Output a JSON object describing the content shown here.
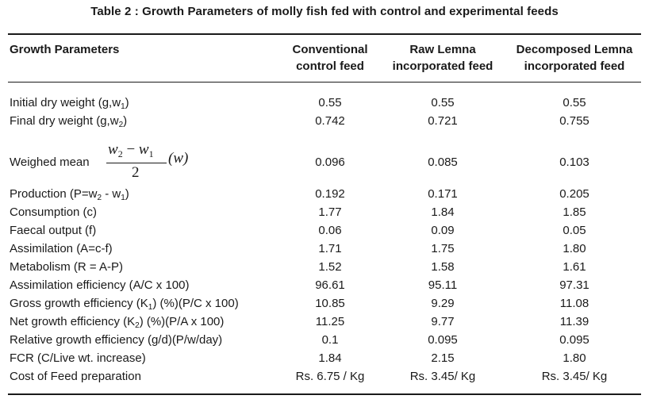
{
  "caption": "Table 2 : Growth Parameters of molly fish fed with control and experimental feeds",
  "headers": {
    "col0": "Growth Parameters",
    "col1": [
      "Conventional",
      "control feed"
    ],
    "col2": [
      "Raw Lemna",
      "incorporated feed"
    ],
    "col3": [
      "Decomposed Lemna",
      "incorporated feed"
    ]
  },
  "formula": {
    "num_a": "w",
    "num_a_sub": "2",
    "minus": " − ",
    "num_b": "w",
    "num_b_sub": "1",
    "den": "2",
    "factor": "(w)"
  },
  "rows": [
    {
      "label": "Initial dry weight (g,w",
      "label_sub": "1",
      "label_end": ")",
      "values": [
        "0.55",
        "0.55",
        "0.55"
      ]
    },
    {
      "label": "Final dry weight (g,w",
      "label_sub": "2",
      "label_end": ")",
      "values": [
        "0.742",
        "0.721",
        "0.755"
      ]
    },
    {
      "label": "Weighed mean",
      "values": [
        "0.096",
        "0.085",
        "0.103"
      ]
    },
    {
      "label": "Production (P=w",
      "label_sub": "2",
      "label_end": " - w",
      "label_sub2": "1",
      "label_end2": ")",
      "values": [
        "0.192",
        "0.171",
        "0.205"
      ]
    },
    {
      "label": "Consumption (c)",
      "values": [
        "1.77",
        "1.84",
        "1.85"
      ]
    },
    {
      "label": "Faecal output (f)",
      "values": [
        "0.06",
        "0.09",
        "0.05"
      ]
    },
    {
      "label": "Assimilation (A=c-f)",
      "values": [
        "1.71",
        "1.75",
        "1.80"
      ]
    },
    {
      "label": "Metabolism (R = A-P)",
      "values": [
        "1.52",
        "1.58",
        "1.61"
      ]
    },
    {
      "label": "Assimilation efficiency (A/C x 100)",
      "values": [
        "96.61",
        "95.11",
        "97.31"
      ]
    },
    {
      "label": "Gross growth efficiency (K",
      "label_sub": "1",
      "label_end": ") (%)(P/C x 100)",
      "values": [
        "10.85",
        "9.29",
        "11.08"
      ]
    },
    {
      "label": "Net growth efficiency (K",
      "label_sub": "2",
      "label_end": ") (%)(P/A x 100)",
      "values": [
        "11.25",
        "9.77",
        "11.39"
      ]
    },
    {
      "label": "Relative growth efficiency (g/d)(P/w/day)",
      "values": [
        "0.1",
        "0.095",
        "0.095"
      ]
    },
    {
      "label": "FCR (C/Live wt. increase)",
      "values": [
        "1.84",
        "2.15",
        "1.80"
      ]
    },
    {
      "label": "Cost of Feed preparation",
      "values": [
        "Rs. 6.75 / Kg",
        "Rs. 3.45/ Kg",
        "Rs. 3.45/ Kg"
      ]
    }
  ]
}
